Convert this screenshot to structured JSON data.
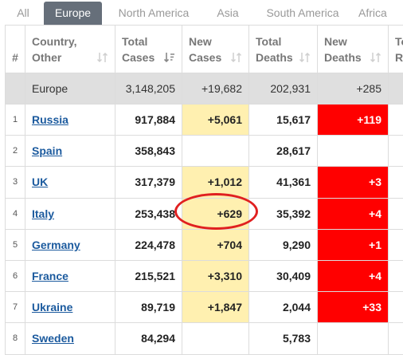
{
  "tabs": [
    {
      "label": "All",
      "active": false
    },
    {
      "label": "Europe",
      "active": true
    },
    {
      "label": "North America",
      "active": false
    },
    {
      "label": "Asia",
      "active": false
    },
    {
      "label": "South America",
      "active": false
    },
    {
      "label": "Africa",
      "active": false
    }
  ],
  "headers": {
    "index": "#",
    "country_line1": "Country,",
    "country_line2": "Other",
    "total_cases_line1": "Total",
    "total_cases_line2": "Cases",
    "new_cases_line1": "New",
    "new_cases_line2": "Cases",
    "total_deaths_line1": "Total",
    "total_deaths_line2": "Deaths",
    "new_deaths_line1": "New",
    "new_deaths_line2": "Deaths",
    "next_line1": "To",
    "next_line2": "Re"
  },
  "total_row": {
    "country": "Europe",
    "total_cases": "3,148,205",
    "new_cases": "+19,682",
    "total_deaths": "202,931",
    "new_deaths": "+285"
  },
  "rows": [
    {
      "index": "1",
      "country": "Russia",
      "total_cases": "917,884",
      "new_cases": "+5,061",
      "total_deaths": "15,617",
      "new_deaths": "+119"
    },
    {
      "index": "2",
      "country": "Spain",
      "total_cases": "358,843",
      "new_cases": "",
      "total_deaths": "28,617",
      "new_deaths": ""
    },
    {
      "index": "3",
      "country": "UK",
      "total_cases": "317,379",
      "new_cases": "+1,012",
      "total_deaths": "41,361",
      "new_deaths": "+3"
    },
    {
      "index": "4",
      "country": "Italy",
      "total_cases": "253,438",
      "new_cases": "+629",
      "total_deaths": "35,392",
      "new_deaths": "+4"
    },
    {
      "index": "5",
      "country": "Germany",
      "total_cases": "224,478",
      "new_cases": "+704",
      "total_deaths": "9,290",
      "new_deaths": "+1"
    },
    {
      "index": "6",
      "country": "France",
      "total_cases": "215,521",
      "new_cases": "+3,310",
      "total_deaths": "30,409",
      "new_deaths": "+4"
    },
    {
      "index": "7",
      "country": "Ukraine",
      "total_cases": "89,719",
      "new_cases": "+1,847",
      "total_deaths": "2,044",
      "new_deaths": "+33"
    },
    {
      "index": "8",
      "country": "Sweden",
      "total_cases": "84,294",
      "new_cases": "",
      "total_deaths": "5,783",
      "new_deaths": ""
    }
  ],
  "colors": {
    "new_cases_highlight": "#fff0b0",
    "new_deaths_highlight": "#ff0000",
    "active_tab": "#666f7a",
    "country_link": "#1b5a9e",
    "annotation": "#e02020"
  },
  "icons": {
    "sort": "sort-arrows-icon",
    "sort_active": "sort-descending-icon"
  }
}
